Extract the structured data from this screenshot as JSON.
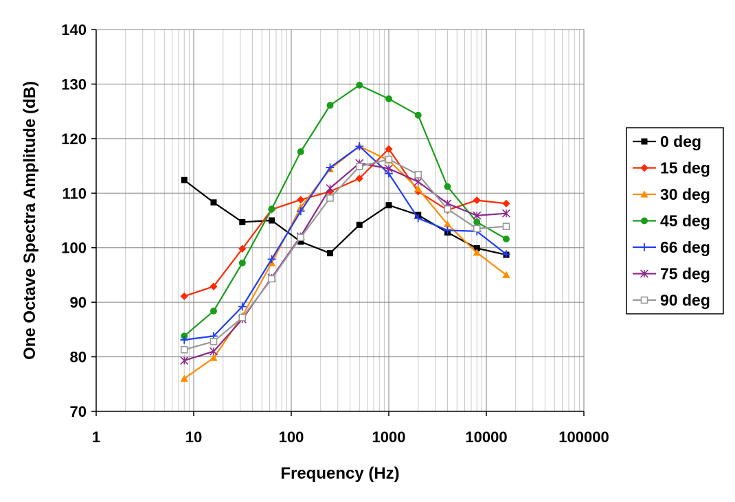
{
  "chart_data": {
    "type": "line",
    "title": "",
    "xlabel": "Frequency (Hz)",
    "ylabel": "One Octave Spectra Amplitude (dB)",
    "xscale": "log",
    "xlim": [
      1,
      100000
    ],
    "ylim": [
      70,
      140
    ],
    "x_ticks": [
      "1",
      "10",
      "100",
      "1000",
      "10000",
      "100000"
    ],
    "y_ticks": [
      "70",
      "80",
      "90",
      "100",
      "110",
      "120",
      "130",
      "140"
    ],
    "grid": true,
    "legend_position": "right",
    "x": [
      8,
      16,
      31.5,
      63,
      125,
      250,
      500,
      1000,
      2000,
      4000,
      8000,
      16000
    ],
    "series": [
      {
        "name": "0 deg",
        "color": "#000000",
        "marker": "square-filled",
        "values": [
          112.4,
          108.3,
          104.7,
          105.0,
          101.1,
          99.0,
          104.2,
          107.8,
          106.0,
          102.8,
          99.9,
          98.7
        ]
      },
      {
        "name": "15 deg",
        "color": "#ff2a00",
        "marker": "diamond-filled",
        "values": [
          91.1,
          92.9,
          99.8,
          107.0,
          108.8,
          110.3,
          112.7,
          118.1,
          110.3,
          106.9,
          108.7,
          108.1
        ]
      },
      {
        "name": "30 deg",
        "color": "#ff8c00",
        "marker": "triangle-filled",
        "values": [
          76.0,
          79.8,
          87.5,
          97.2,
          107.4,
          114.4,
          118.6,
          116.0,
          110.8,
          104.3,
          99.1,
          95.0
        ]
      },
      {
        "name": "45 deg",
        "color": "#1a9e1a",
        "marker": "circle-filled",
        "values": [
          83.8,
          88.4,
          97.2,
          107.1,
          117.6,
          126.1,
          129.8,
          127.3,
          124.3,
          111.2,
          104.7,
          101.6
        ]
      },
      {
        "name": "66 deg",
        "color": "#1e3cff",
        "marker": "plus",
        "values": [
          83.1,
          83.8,
          89.2,
          97.9,
          106.7,
          114.7,
          118.6,
          113.6,
          105.4,
          103.2,
          103.0,
          98.8
        ]
      },
      {
        "name": "75 deg",
        "color": "#8b2a8b",
        "marker": "asterisk",
        "values": [
          79.3,
          81.0,
          86.9,
          94.5,
          102.1,
          110.9,
          115.5,
          114.5,
          112.1,
          108.1,
          105.9,
          106.3
        ]
      },
      {
        "name": "90 deg",
        "color": "#999999",
        "marker": "square-open",
        "values": [
          81.3,
          82.8,
          87.2,
          94.3,
          101.9,
          109.1,
          114.9,
          116.2,
          113.4,
          107.1,
          103.5,
          103.9
        ]
      }
    ]
  }
}
